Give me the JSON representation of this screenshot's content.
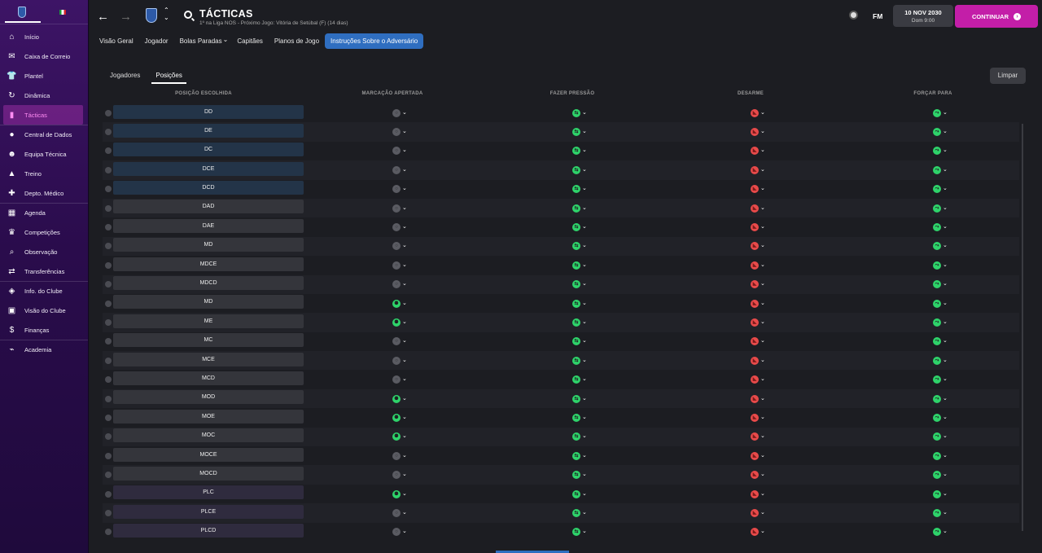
{
  "sidebar": {
    "items": [
      {
        "label": "Início",
        "icon": "home-icon",
        "glyph": "⌂"
      },
      {
        "label": "Caixa de Correio",
        "icon": "inbox-icon",
        "glyph": "✉"
      },
      {
        "label": "Plantel",
        "icon": "shirt-icon",
        "glyph": "👕"
      },
      {
        "label": "Dinâmica",
        "icon": "dynamics-icon",
        "glyph": "↻"
      },
      {
        "label": "Tácticas",
        "icon": "tactics-icon",
        "glyph": "▮"
      },
      {
        "label": "Central de Dados",
        "icon": "data-hub-icon",
        "glyph": "●"
      },
      {
        "label": "Equipa Técnica",
        "icon": "staff-icon",
        "glyph": "☻"
      },
      {
        "label": "Treino",
        "icon": "training-icon",
        "glyph": "▲"
      },
      {
        "label": "Depto. Médico",
        "icon": "medical-icon",
        "glyph": "✚"
      },
      {
        "label": "Agenda",
        "icon": "calendar-icon",
        "glyph": "▦"
      },
      {
        "label": "Competições",
        "icon": "trophy-icon",
        "glyph": "♛"
      },
      {
        "label": "Observação",
        "icon": "scouting-icon",
        "glyph": "⌕"
      },
      {
        "label": "Transferências",
        "icon": "transfers-icon",
        "glyph": "⇄"
      },
      {
        "label": "Info. do Clube",
        "icon": "club-info-icon",
        "glyph": "◈"
      },
      {
        "label": "Visão do Clube",
        "icon": "club-vision-icon",
        "glyph": "▣"
      },
      {
        "label": "Finanças",
        "icon": "finances-icon",
        "glyph": "$"
      },
      {
        "label": "Academia",
        "icon": "academy-icon",
        "glyph": "⌁"
      }
    ]
  },
  "header": {
    "title": "TÁCTICAS",
    "subtitle": "1º na Liga NOS - Próximo Jogo: Vitória de Setúbal (F) (14 dias)",
    "fm_label": "FM",
    "date": "10 NOV 2030",
    "day_time": "Dom 9:00",
    "continue_label": "CONTINUAR"
  },
  "tabs": [
    "Visão Geral",
    "Jogador",
    "Bolas Paradas",
    "Capitães",
    "Planos de Jogo",
    "Instruções Sobre o Adversário"
  ],
  "active_tab": 5,
  "subtabs": [
    "Jogadores",
    "Posições"
  ],
  "active_subtab": 1,
  "clear_label": "Limpar",
  "columns": {
    "position": "POSIÇÃO ESCOLHIDA",
    "marking": "MARCAÇÃO APERTADA",
    "pressing": "FAZER PRESSÃO",
    "tackling": "DESARME",
    "force": "FORÇAR PARA"
  },
  "colors": {
    "accent": "#c31ea8",
    "tab_active": "#2f6ec0",
    "green": "#2ed36a",
    "red": "#e84a4a",
    "grey": "#5a5b62"
  },
  "rows": [
    {
      "pos": "DD",
      "group": "def",
      "marking": "off"
    },
    {
      "pos": "DE",
      "group": "def",
      "marking": "off"
    },
    {
      "pos": "DC",
      "group": "def",
      "marking": "off"
    },
    {
      "pos": "DCE",
      "group": "def",
      "marking": "off"
    },
    {
      "pos": "DCD",
      "group": "def",
      "marking": "off"
    },
    {
      "pos": "DAD",
      "group": "mid",
      "marking": "off"
    },
    {
      "pos": "DAE",
      "group": "mid",
      "marking": "off"
    },
    {
      "pos": "MD",
      "group": "mid",
      "marking": "off"
    },
    {
      "pos": "MDCE",
      "group": "mid",
      "marking": "off"
    },
    {
      "pos": "MDCD",
      "group": "mid",
      "marking": "off"
    },
    {
      "pos": "MD",
      "group": "mid",
      "marking": "on"
    },
    {
      "pos": "ME",
      "group": "mid",
      "marking": "on"
    },
    {
      "pos": "MC",
      "group": "mid",
      "marking": "off"
    },
    {
      "pos": "MCE",
      "group": "mid",
      "marking": "off"
    },
    {
      "pos": "MCD",
      "group": "mid",
      "marking": "off"
    },
    {
      "pos": "MOD",
      "group": "mid",
      "marking": "on"
    },
    {
      "pos": "MOE",
      "group": "mid",
      "marking": "on"
    },
    {
      "pos": "MOC",
      "group": "mid",
      "marking": "on"
    },
    {
      "pos": "MOCE",
      "group": "mid",
      "marking": "off"
    },
    {
      "pos": "MOCD",
      "group": "mid",
      "marking": "off"
    },
    {
      "pos": "PLC",
      "group": "att",
      "marking": "on"
    },
    {
      "pos": "PLCE",
      "group": "att",
      "marking": "off"
    },
    {
      "pos": "PLCD",
      "group": "att",
      "marking": "off"
    }
  ]
}
